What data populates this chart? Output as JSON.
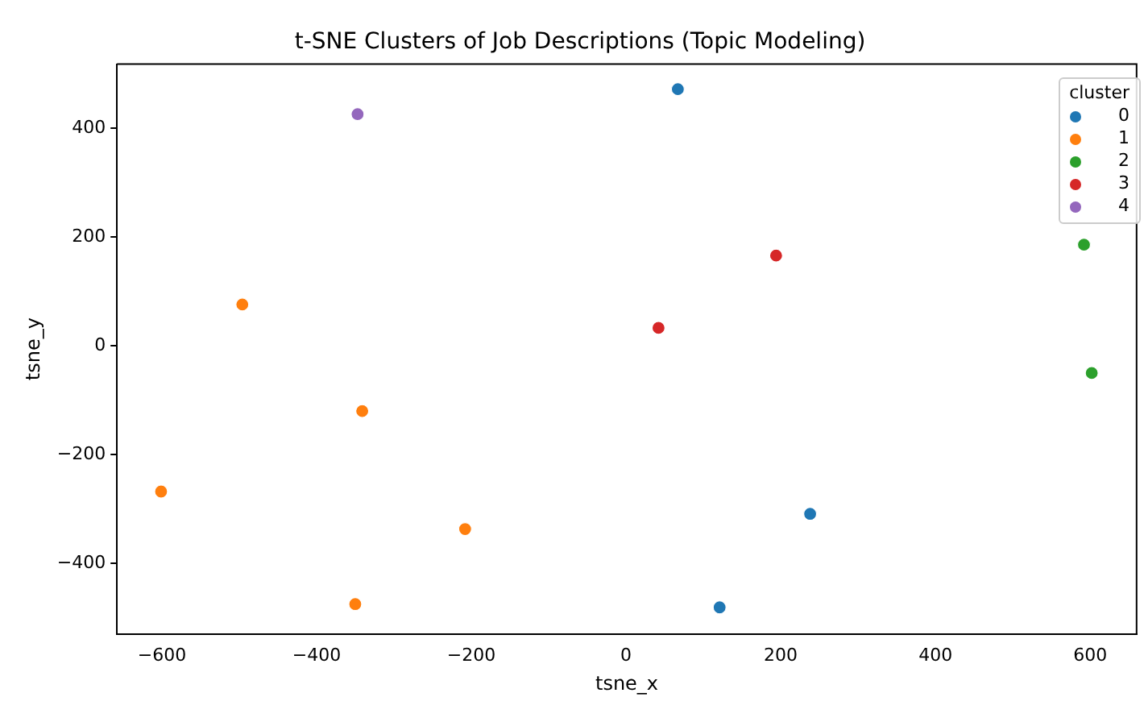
{
  "chart_data": {
    "type": "scatter",
    "title": "t-SNE Clusters of Job Descriptions (Topic Modeling)",
    "xlabel": "tsne_x",
    "ylabel": "tsne_y",
    "legend_title": "cluster",
    "legend": "top right",
    "marker": "circle",
    "grid": false,
    "xlim": [
      -658,
      660
    ],
    "xticks": [
      -600,
      -400,
      -200,
      0,
      200,
      400,
      600
    ],
    "ylim": [
      -530,
      518
    ],
    "yticks": [
      -400,
      -200,
      0,
      200,
      400
    ],
    "series": [
      {
        "name": "0",
        "color": "#1f77b4",
        "x": [
          67,
          238,
          121
        ],
        "values": [
          472,
          -309,
          -481
        ]
      },
      {
        "name": "1",
        "color": "#ff7f0e",
        "x": [
          -496,
          -341,
          -601,
          -208,
          -350
        ],
        "values": [
          76,
          -120,
          -268,
          -337,
          -475
        ]
      },
      {
        "name": "2",
        "color": "#2ca02c",
        "x": [
          592,
          602
        ],
        "values": [
          186,
          -50
        ]
      },
      {
        "name": "3",
        "color": "#d62728",
        "x": [
          194,
          42
        ],
        "values": [
          166,
          33
        ]
      },
      {
        "name": "4",
        "color": "#9467bd",
        "x": [
          -347
        ],
        "values": [
          426
        ]
      }
    ]
  }
}
